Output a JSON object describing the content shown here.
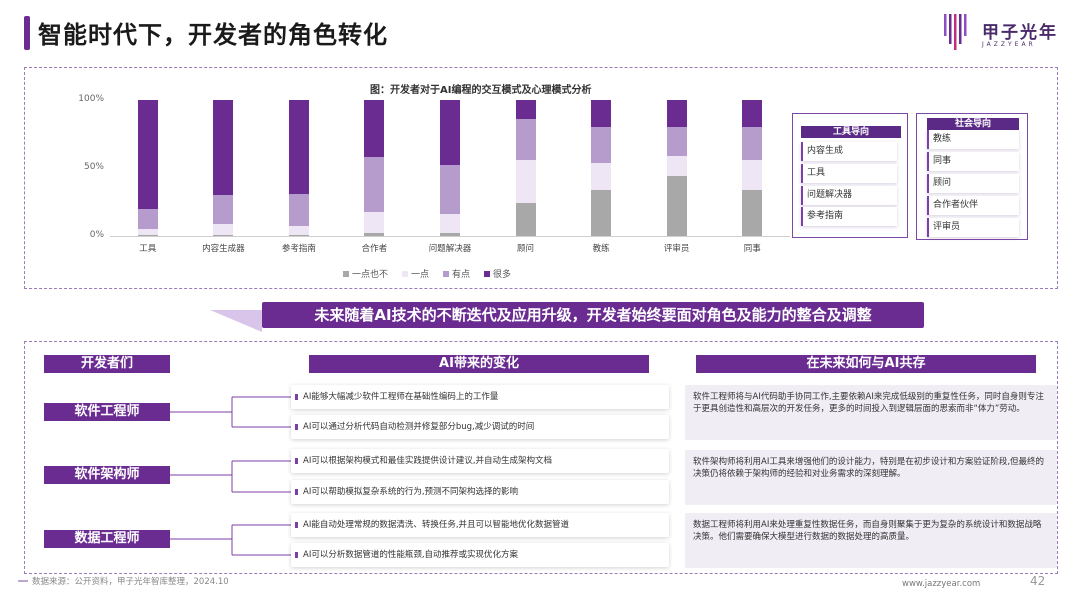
{
  "page": {
    "title": "智能时代下，开发者的角色转化",
    "logo_cn": "甲子光年",
    "logo_en": "JAZZYEAR"
  },
  "chart_data": {
    "type": "bar",
    "title": "图：开发者对于AI编程的交互模式及心理模式分析",
    "stacked": true,
    "ylim": [
      0,
      100
    ],
    "yticks": [
      "0%",
      "50%",
      "100%"
    ],
    "categories": [
      "工具",
      "内容生成器",
      "参考指南",
      "合作者",
      "问题解决器",
      "顾问",
      "教练",
      "评审员",
      "同事"
    ],
    "series": [
      {
        "name": "一点也不",
        "color": "#a8a8a8",
        "values": [
          1,
          1,
          1,
          2,
          2,
          24,
          34,
          44,
          34
        ]
      },
      {
        "name": "一点",
        "color": "#efe6f5",
        "values": [
          4,
          8,
          6,
          16,
          14,
          32,
          20,
          15,
          22
        ]
      },
      {
        "name": "有点",
        "color": "#b69ccc",
        "values": [
          15,
          21,
          24,
          40,
          36,
          30,
          26,
          21,
          24
        ]
      },
      {
        "name": "很多",
        "color": "#6a2c91",
        "values": [
          80,
          70,
          69,
          42,
          48,
          14,
          20,
          20,
          20
        ]
      }
    ],
    "legend_position": "bottom"
  },
  "role_groups": {
    "tool": {
      "title": "工具导向",
      "items": [
        "内容生成",
        "工具",
        "问题解决器",
        "参考指南"
      ]
    },
    "social": {
      "title": "社会导向",
      "items": [
        "教练",
        "同事",
        "顾问",
        "合作者伙伴",
        "评审员"
      ]
    }
  },
  "banner": "未来随着AI技术的不断迭代及应用升级，开发者始终要面对角色及能力的整合及调整",
  "table": {
    "col1": "开发者们",
    "col2": "AI带来的变化",
    "col3": "在未来如何与AI共存",
    "rows": [
      {
        "role": "软件工程师",
        "changes": [
          "AI能够大幅减少软件工程师在基础性编码上的工作量",
          "AI可以通过分析代码自动检测并修复部分bug,减少调试的时间"
        ],
        "future": "软件工程师将与AI代码助手协同工作,主要依赖AI来完成低级别的重复性任务，同时自身则专注于更具创造性和高层次的开发任务，更多的时间投入到逻辑层面的思索而非“体力”劳动。"
      },
      {
        "role": "软件架构师",
        "changes": [
          "AI可以根据架构模式和最佳实践提供设计建议,并自动生成架构文档",
          "AI可以帮助模拟复杂系统的行为,预测不同架构选择的影响"
        ],
        "future": "软件架构师将利用AI工具来增强他们的设计能力，特别是在初步设计和方案验证阶段,但最终的决策仍将依赖于架构师的经验和对业务需求的深刻理解。"
      },
      {
        "role": "数据工程师",
        "changes": [
          "AI能自动处理常规的数据清洗、转换任务,并且可以智能地优化数据管道",
          "AI可以分析数据管道的性能瓶颈,自动推荐或实现优化方案"
        ],
        "future": "数据工程师将利用AI来处理重复性数据任务，而自身则聚集于更为复杂的系统设计和数据战略决策。他们需要确保大模型进行数据的数据处理的高质量。"
      }
    ]
  },
  "footer": {
    "source": "数据来源：公开资料，甲子光年智库整理，2024.10",
    "url": "www.jazzyear.com",
    "page": "42"
  }
}
